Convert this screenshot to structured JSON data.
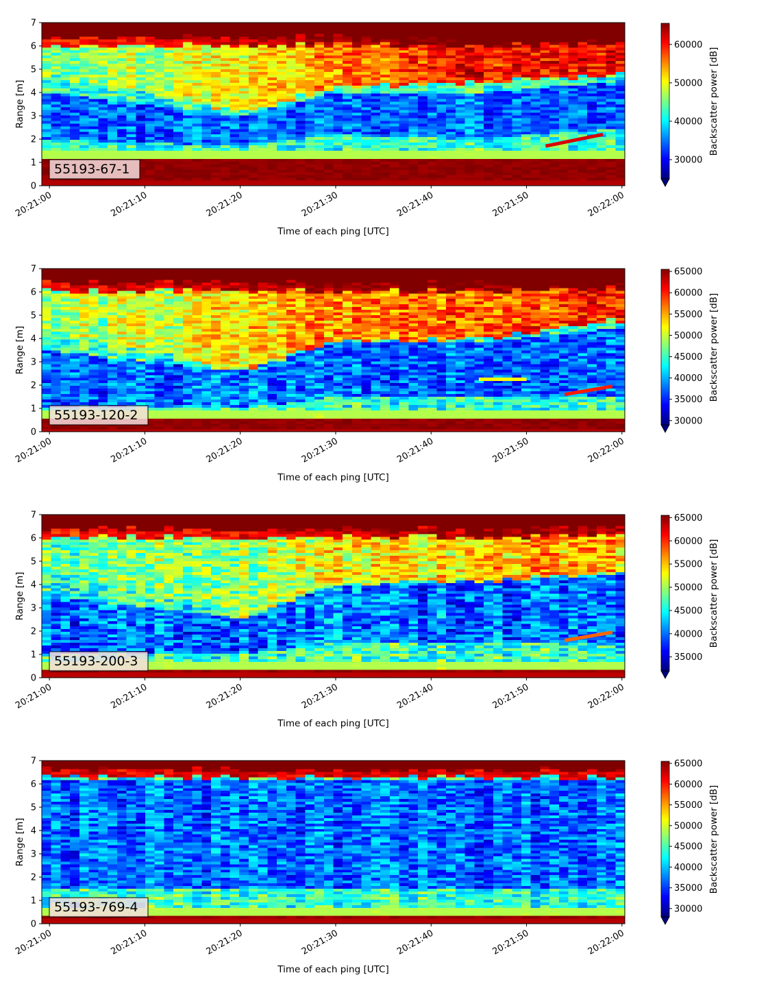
{
  "chart_data": [
    {
      "type": "heatmap",
      "panel_label": "55193-67-1",
      "xlabel": "Time of each ping [UTC]",
      "ylabel": "Range [m]",
      "colorbar_label": "Backscatter power [dB]",
      "colormap": "jet",
      "xlim": [
        "20:21:00",
        "20:22:00"
      ],
      "x_ticks": [
        "20:21:00",
        "20:21:10",
        "20:21:20",
        "20:21:30",
        "20:21:40",
        "20:21:50",
        "20:22:00"
      ],
      "ylim": [
        0,
        7
      ],
      "y_ticks": [
        0,
        1,
        2,
        3,
        4,
        5,
        6,
        7
      ],
      "clim": [
        25000,
        65500
      ],
      "colorbar_ticks": [
        30000,
        40000,
        50000,
        60000
      ],
      "profile_points": [
        {
          "time": "20:21:00",
          "bottom_band": [
            0.2,
            1.15
          ],
          "upper_layer": [
            4.8,
            6.4
          ],
          "upper_level": 45000,
          "mid_low": [
            2.0,
            4.0
          ],
          "surface_top": 6.4
        },
        {
          "time": "20:21:20",
          "bottom_band": [
            0.2,
            1.15
          ],
          "upper_layer": [
            3.2,
            6.4
          ],
          "upper_level": 50000,
          "mid_low": [
            1.7,
            3.0
          ],
          "surface_top": 6.4
        },
        {
          "time": "20:21:30",
          "bottom_band": [
            0.2,
            1.15
          ],
          "upper_layer": [
            4.2,
            6.4
          ],
          "upper_level": 55000,
          "mid_low": [
            2.2,
            4.0
          ],
          "surface_top": 6.4
        },
        {
          "time": "20:21:45",
          "bottom_band": [
            0.2,
            1.15
          ],
          "upper_layer": [
            4.5,
            6.4
          ],
          "upper_level": 60000,
          "mid_low": [
            2.0,
            4.0
          ],
          "surface_top": 6.4
        },
        {
          "time": "20:22:00",
          "bottom_band": [
            0.2,
            1.15
          ],
          "upper_layer": [
            4.8,
            6.5
          ],
          "upper_level": 60000,
          "mid_low": [
            2.5,
            4.5
          ],
          "surface_top": 6.5
        }
      ],
      "features": [
        {
          "name": "rising line",
          "t_start": "20:21:52",
          "t_end": "20:21:58",
          "y_start": 1.7,
          "y_end": 2.2,
          "value": 62000
        }
      ]
    },
    {
      "type": "heatmap",
      "panel_label": "55193-120-2",
      "xlabel": "Time of each ping [UTC]",
      "ylabel": "Range [m]",
      "colorbar_label": "Backscatter power [dB]",
      "colormap": "jet",
      "xlim": [
        "20:21:00",
        "20:22:00"
      ],
      "x_ticks": [
        "20:21:00",
        "20:21:10",
        "20:21:20",
        "20:21:30",
        "20:21:40",
        "20:21:50",
        "20:22:00"
      ],
      "ylim": [
        0,
        7
      ],
      "y_ticks": [
        0,
        1,
        2,
        3,
        4,
        5,
        6,
        7
      ],
      "clim": [
        29000,
        65500
      ],
      "colorbar_ticks": [
        30000,
        35000,
        40000,
        45000,
        50000,
        55000,
        60000,
        65000
      ],
      "profile_points": [
        {
          "time": "20:21:00",
          "bottom_band": [
            0.1,
            0.55
          ],
          "upper_layer": [
            4.3,
            6.4
          ],
          "upper_level": 48000,
          "mid_low": [
            1.0,
            3.5
          ],
          "surface_top": 6.4
        },
        {
          "time": "20:21:20",
          "bottom_band": [
            0.1,
            0.55
          ],
          "upper_layer": [
            2.6,
            6.4
          ],
          "upper_level": 52000,
          "mid_low": [
            1.0,
            2.6
          ],
          "surface_top": 6.4
        },
        {
          "time": "20:21:30",
          "bottom_band": [
            0.1,
            0.55
          ],
          "upper_layer": [
            3.9,
            6.4
          ],
          "upper_level": 56000,
          "mid_low": [
            1.5,
            3.8
          ],
          "surface_top": 6.4
        },
        {
          "time": "20:21:45",
          "bottom_band": [
            0.1,
            0.6
          ],
          "upper_layer": [
            4.0,
            6.4
          ],
          "upper_level": 58000,
          "mid_low": [
            1.5,
            3.8
          ],
          "surface_top": 6.4
        },
        {
          "time": "20:22:00",
          "bottom_band": [
            0.1,
            0.6
          ],
          "upper_layer": [
            4.8,
            6.5
          ],
          "upper_level": 60000,
          "mid_low": [
            1.5,
            4.5
          ],
          "surface_top": 6.5
        }
      ],
      "features": [
        {
          "name": "rising line",
          "t_start": "20:21:54",
          "t_end": "20:21:59",
          "y_start": 1.6,
          "y_end": 1.95,
          "value": 60000
        },
        {
          "name": "mid streak",
          "t_start": "20:21:45",
          "t_end": "20:21:50",
          "y_start": 2.25,
          "y_end": 2.25,
          "value": 52000
        }
      ]
    },
    {
      "type": "heatmap",
      "panel_label": "55193-200-3",
      "xlabel": "Time of each ping [UTC]",
      "ylabel": "Range [m]",
      "colorbar_label": "Backscatter power [dB]",
      "colormap": "jet",
      "xlim": [
        "20:21:00",
        "20:22:00"
      ],
      "x_ticks": [
        "20:21:00",
        "20:21:10",
        "20:21:20",
        "20:21:30",
        "20:21:40",
        "20:21:50",
        "20:22:00"
      ],
      "ylim": [
        0,
        7
      ],
      "y_ticks": [
        0,
        1,
        2,
        3,
        4,
        5,
        6,
        7
      ],
      "clim": [
        32000,
        65500
      ],
      "colorbar_ticks": [
        35000,
        40000,
        45000,
        50000,
        55000,
        60000,
        65000
      ],
      "profile_points": [
        {
          "time": "20:21:00",
          "bottom_band": [
            0.2,
            0.4
          ],
          "upper_layer": [
            4.5,
            6.4
          ],
          "upper_level": 48000,
          "mid_low": [
            1.0,
            3.5
          ],
          "surface_top": 6.4
        },
        {
          "time": "20:21:20",
          "bottom_band": [
            0.2,
            0.4
          ],
          "upper_layer": [
            2.6,
            6.4
          ],
          "upper_level": 50000,
          "mid_low": [
            1.0,
            2.6
          ],
          "surface_top": 6.4
        },
        {
          "time": "20:21:30",
          "bottom_band": [
            0.2,
            0.4
          ],
          "upper_layer": [
            4.0,
            6.4
          ],
          "upper_level": 52000,
          "mid_low": [
            1.5,
            4.0
          ],
          "surface_top": 6.4
        },
        {
          "time": "20:21:45",
          "bottom_band": [
            0.2,
            0.4
          ],
          "upper_layer": [
            4.2,
            6.4
          ],
          "upper_level": 55000,
          "mid_low": [
            1.5,
            4.2
          ],
          "surface_top": 6.4
        },
        {
          "time": "20:22:00",
          "bottom_band": [
            0.2,
            0.4
          ],
          "upper_layer": [
            4.5,
            6.5
          ],
          "upper_level": 56000,
          "mid_low": [
            1.5,
            4.5
          ],
          "surface_top": 6.5
        }
      ],
      "features": [
        {
          "name": "rising line",
          "t_start": "20:21:54",
          "t_end": "20:21:59",
          "y_start": 1.6,
          "y_end": 1.95,
          "value": 58000
        }
      ]
    },
    {
      "type": "heatmap",
      "panel_label": "55193-769-4",
      "xlabel": "Time of each ping [UTC]",
      "ylabel": "Range [m]",
      "colorbar_label": "Backscatter power [dB]",
      "colormap": "jet",
      "xlim": [
        "20:21:00",
        "20:22:00"
      ],
      "x_ticks": [
        "20:21:00",
        "20:21:10",
        "20:21:20",
        "20:21:30",
        "20:21:40",
        "20:21:50",
        "20:22:00"
      ],
      "ylim": [
        0,
        7
      ],
      "y_ticks": [
        0,
        1,
        2,
        3,
        4,
        5,
        6,
        7
      ],
      "clim": [
        28000,
        65500
      ],
      "colorbar_ticks": [
        30000,
        35000,
        40000,
        45000,
        50000,
        55000,
        60000,
        65000
      ],
      "profile_points": [
        {
          "time": "20:21:00",
          "bottom_band": [
            0.2,
            0.3
          ],
          "upper_layer": [
            6.3,
            6.6
          ],
          "upper_level": 50000,
          "mid_low": [
            1.5,
            6.2
          ],
          "surface_top": 6.6
        },
        {
          "time": "20:21:30",
          "bottom_band": [
            0.2,
            0.3
          ],
          "upper_layer": [
            6.3,
            6.6
          ],
          "upper_level": 50000,
          "mid_low": [
            1.5,
            6.2
          ],
          "surface_top": 6.6
        },
        {
          "time": "20:22:00",
          "bottom_band": [
            0.2,
            0.3
          ],
          "upper_layer": [
            6.3,
            6.6
          ],
          "upper_level": 50000,
          "mid_low": [
            1.5,
            6.2
          ],
          "surface_top": 6.6
        }
      ],
      "features": []
    }
  ]
}
